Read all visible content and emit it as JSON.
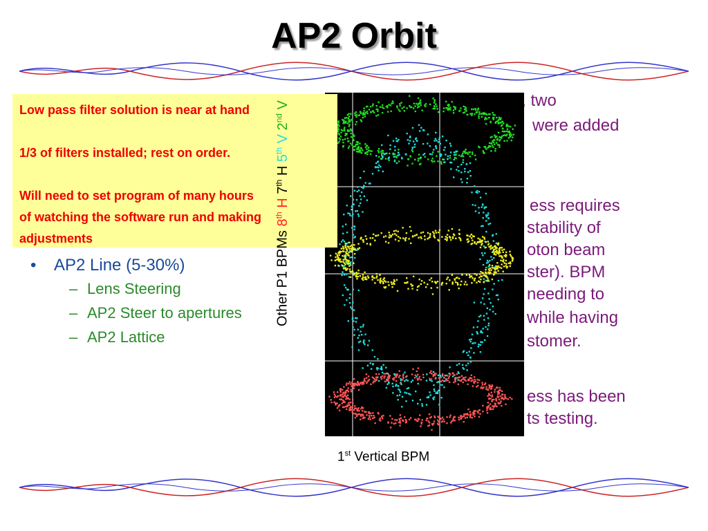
{
  "slide": {
    "title": "AP2 Orbit",
    "right_text_lines": [
      "During the shutdown, two",
      "were added",
      "ess requires",
      "stability of",
      "oton beam",
      "ster). BPM",
      "needing to",
      "while having",
      "stomer.",
      "ess has been",
      "ts testing."
    ],
    "note_box": {
      "line1": "Low pass filter solution is near at hand",
      "line2": "1/3 of filters installed; rest on order.",
      "line3": "Will need to set program of many hours",
      "line4": "of watching the software run and making",
      "line5": "adjustments",
      "color": "#ee0000",
      "background": "#ffff99"
    },
    "bullets": {
      "main": "AP2 Line (5-30%)",
      "subs": [
        "Lens Steering",
        "AP2 Steer to apertures",
        "AP2 Lattice"
      ]
    }
  },
  "chart_data": {
    "type": "scatter",
    "xlabel_base": "1",
    "xlabel_sup": "st",
    "xlabel_rest": " Vertical BPM",
    "ylabel": {
      "other": "Other P1 BPMs ",
      "h8_base": "8",
      "h8_sup": "th",
      "h8_rest": " H ",
      "h7_base": "7",
      "h7_sup": "th",
      "h7_rest": " H ",
      "v5_base": "5",
      "v5_sup": "th",
      "v5_rest": " V ",
      "v2_base": "2",
      "v2_sup": "nd",
      "v2_rest": " V"
    },
    "grid": true,
    "series": [
      {
        "name": "2nd V",
        "color": "#22dd22",
        "band": "top"
      },
      {
        "name": "5th V",
        "color": "#22dddd",
        "band": "middle-wide"
      },
      {
        "name": "7th H",
        "color": "#eeee22",
        "band": "middle"
      },
      {
        "name": "8th H",
        "color": "#ff5555",
        "band": "bottom"
      }
    ]
  }
}
